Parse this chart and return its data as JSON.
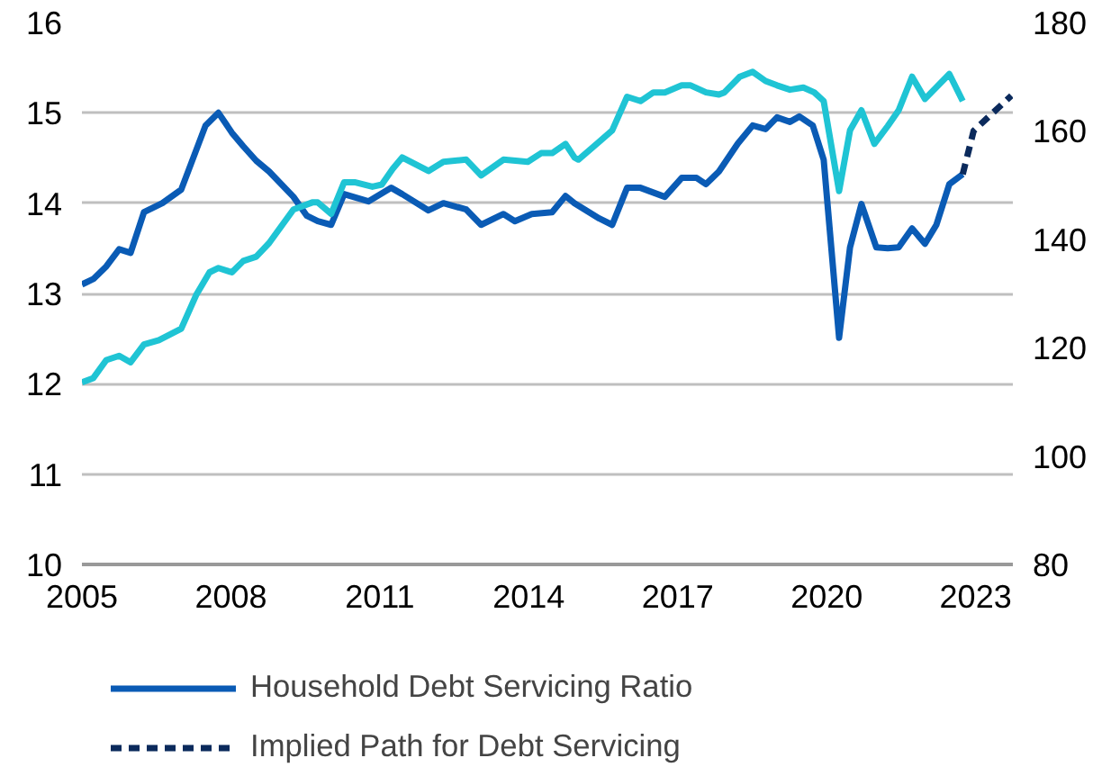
{
  "chart_data": {
    "type": "line",
    "xlim": [
      2005,
      2023.75
    ],
    "xticks": [
      2005,
      2008,
      2011,
      2014,
      2017,
      2020,
      2023
    ],
    "ylim": [
      10,
      16
    ],
    "yticks": [
      10,
      11,
      12,
      13,
      14,
      15,
      16
    ],
    "y2lim": [
      80,
      180
    ],
    "y2ticks": [
      80,
      100,
      120,
      140,
      160,
      180
    ],
    "grid": "y",
    "legend": "bottom",
    "line_style": "solid",
    "marker": "none",
    "series": [
      {
        "name": "Household Debt Servicing Ratio",
        "color": "#0a5bb5",
        "x": [
          2005.0,
          2005.23,
          2005.49,
          2005.75,
          2005.98,
          2006.25,
          2006.62,
          2007.0,
          2007.49,
          2007.75,
          2008.02,
          2008.25,
          2008.51,
          2008.77,
          2009.26,
          2009.53,
          2009.75,
          2010.02,
          2010.28,
          2010.77,
          2011.23,
          2011.45,
          2011.98,
          2012.28,
          2012.74,
          2013.04,
          2013.49,
          2013.72,
          2014.06,
          2014.47,
          2014.74,
          2014.92,
          2015.42,
          2015.68,
          2015.98,
          2016.25,
          2016.74,
          2017.08,
          2017.38,
          2017.57,
          2017.83,
          2018.21,
          2018.51,
          2018.77,
          2019.0,
          2019.26,
          2019.45,
          2019.72,
          2019.94,
          2020.25,
          2020.47,
          2020.7,
          2021.0,
          2021.23,
          2021.45,
          2021.72,
          2021.98,
          2022.21,
          2022.47,
          2022.74
        ],
        "values": [
          13.1,
          13.16,
          13.3,
          13.49,
          13.45,
          13.9,
          14.0,
          14.15,
          14.86,
          15.0,
          14.78,
          14.63,
          14.47,
          14.35,
          14.07,
          13.86,
          13.8,
          13.76,
          14.1,
          14.02,
          14.17,
          14.1,
          13.92,
          14.0,
          13.93,
          13.76,
          13.88,
          13.8,
          13.88,
          13.9,
          14.08,
          14.0,
          13.83,
          13.76,
          14.17,
          14.17,
          14.07,
          14.28,
          14.28,
          14.21,
          14.35,
          14.66,
          14.86,
          14.82,
          14.95,
          14.9,
          14.96,
          14.86,
          14.48,
          12.51,
          13.51,
          13.99,
          13.51,
          13.5,
          13.51,
          13.72,
          13.55,
          13.76,
          14.21,
          14.32
        ]
      },
      {
        "name": "Implied Path for Debt Servicing",
        "color": "#0b2a5c",
        "line_style": "dashed",
        "x": [
          2022.74,
          2022.96,
          2023.23,
          2023.72
        ],
        "values": [
          14.32,
          14.8,
          14.94,
          15.19
        ]
      },
      {
        "color": "#1fc4d4",
        "axis": "y2",
        "x": [
          2005.0,
          2005.23,
          2005.49,
          2005.75,
          2005.98,
          2006.25,
          2006.55,
          2007.0,
          2007.3,
          2007.57,
          2007.75,
          2008.02,
          2008.25,
          2008.51,
          2008.77,
          2009.26,
          2009.64,
          2009.75,
          2010.02,
          2010.28,
          2010.51,
          2010.85,
          2011.04,
          2011.26,
          2011.45,
          2011.98,
          2012.28,
          2012.74,
          2013.04,
          2013.49,
          2013.98,
          2014.25,
          2014.47,
          2014.74,
          2014.92,
          2015.0,
          2015.42,
          2015.68,
          2015.98,
          2016.25,
          2016.51,
          2016.74,
          2017.08,
          2017.26,
          2017.57,
          2017.83,
          2017.94,
          2018.25,
          2018.51,
          2018.77,
          2019.0,
          2019.26,
          2019.53,
          2019.75,
          2019.94,
          2020.25,
          2020.47,
          2020.7,
          2020.96,
          2021.23,
          2021.45,
          2021.72,
          2021.98,
          2022.47,
          2022.74
        ],
        "values": [
          113.6,
          114.4,
          117.7,
          118.5,
          117.3,
          120.6,
          121.4,
          123.5,
          129.7,
          133.9,
          134.7,
          133.9,
          136.0,
          136.8,
          139.3,
          145.5,
          146.8,
          146.8,
          144.7,
          150.5,
          150.5,
          149.7,
          150.1,
          153.0,
          155.1,
          152.6,
          154.3,
          154.7,
          151.8,
          154.7,
          154.3,
          155.9,
          155.9,
          157.6,
          155.1,
          154.7,
          158.0,
          160.1,
          166.3,
          165.5,
          167.1,
          167.1,
          168.4,
          168.4,
          167.1,
          166.7,
          167.1,
          170.0,
          170.9,
          169.2,
          168.4,
          167.6,
          168.0,
          167.1,
          165.5,
          148.9,
          160.1,
          163.8,
          157.6,
          160.9,
          163.8,
          170.0,
          165.9,
          170.5,
          165.5
        ]
      }
    ]
  }
}
